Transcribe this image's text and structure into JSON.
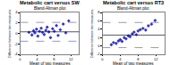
{
  "chart_data": [
    {
      "type": "scatter",
      "title": "Metabolic cart versus SW",
      "subtitle": "Bland-Altman plot",
      "x_label": "Mean of two measures",
      "y_label": "Difference between two measures",
      "x": [
        2.1,
        2.8,
        3.2,
        3.5,
        3.9,
        4.2,
        4.6,
        5.0,
        5.3,
        5.7,
        6.1,
        6.4,
        6.8,
        7.2,
        7.7,
        8.1,
        8.6,
        9.0,
        9.5,
        10.2,
        10.8,
        11.5
      ],
      "values": [
        0.2,
        -0.3,
        0.5,
        0.1,
        0.8,
        -0.5,
        0.4,
        1.0,
        0.2,
        -0.2,
        0.6,
        1.2,
        0.3,
        -0.8,
        0.9,
        0.4,
        1.5,
        -0.4,
        0.7,
        1.8,
        0.1,
        2.4
      ],
      "hlines": [
        0.3,
        2.1,
        -1.5
      ],
      "xlim": [
        0,
        14
      ],
      "xticks": [
        0,
        4,
        8,
        12
      ],
      "ylim": [
        -4,
        4
      ],
      "yticks": [
        -4,
        -2,
        0,
        2,
        4
      ],
      "color": "#3333cc",
      "marker": "diamond"
    },
    {
      "type": "scatter",
      "title": "Metabolic cart versus RT3",
      "subtitle": "Bland-Altman plot",
      "x_label": "Mean of two measures",
      "y_label": "Difference between two measures",
      "x": [
        2.0,
        2.5,
        3.1,
        3.6,
        4.0,
        4.4,
        4.9,
        5.3,
        5.8,
        6.2,
        6.7,
        7.1,
        7.6,
        8.0,
        8.5,
        9.1,
        9.7,
        10.3,
        11.0,
        11.8
      ],
      "values": [
        0.3,
        0.8,
        0.6,
        1.2,
        1.5,
        1.1,
        2.0,
        1.7,
        2.4,
        2.2,
        2.9,
        3.3,
        2.7,
        3.6,
        3.9,
        4.2,
        3.8,
        4.8,
        5.2,
        6.1
      ],
      "hlines": [
        2.6,
        5.6,
        -0.4
      ],
      "xlim": [
        0,
        14
      ],
      "xticks": [
        0,
        4,
        8,
        12
      ],
      "ylim": [
        -2,
        8
      ],
      "yticks": [
        -2,
        0,
        2,
        4,
        6,
        8
      ],
      "color": "#3333cc",
      "marker": "diamond"
    }
  ]
}
